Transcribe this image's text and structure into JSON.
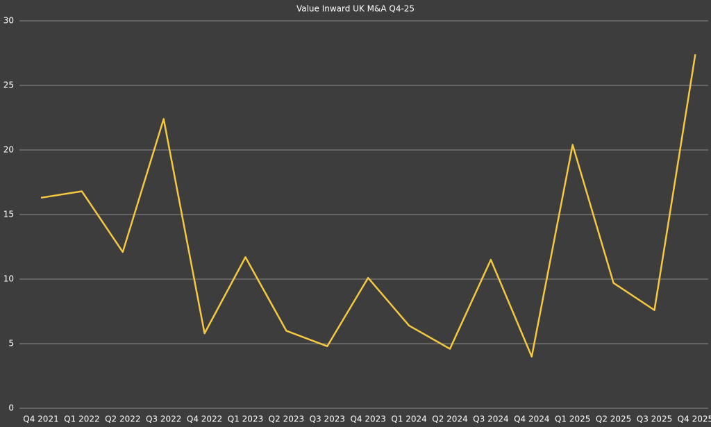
{
  "chart_data": {
    "type": "line",
    "title": "Value Inward UK M&A Q4-25",
    "categories": [
      "Q4 2021",
      "Q1 2022",
      "Q2 2022",
      "Q3 2022",
      "Q4 2022",
      "Q1 2023",
      "Q2 2023",
      "Q3 2023",
      "Q4 2023",
      "Q1 2024",
      "Q2 2024",
      "Q3 2024",
      "Q4 2024",
      "Q1 2025",
      "Q2 2025",
      "Q3 2025",
      "Q4 2025"
    ],
    "values": [
      16.3,
      16.8,
      12.1,
      22.4,
      5.8,
      11.7,
      6.0,
      4.8,
      10.1,
      6.4,
      4.6,
      11.5,
      4.0,
      20.4,
      9.7,
      7.6,
      27.4
    ],
    "color": "#f5c842",
    "ylim": [
      0,
      30
    ],
    "yticks": [
      0,
      5,
      10,
      15,
      20,
      25,
      30
    ],
    "grid": true
  }
}
